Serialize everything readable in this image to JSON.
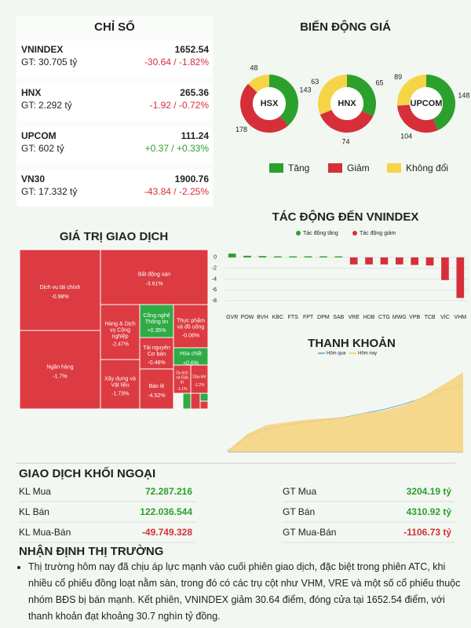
{
  "indices": {
    "title": "CHỈ SỐ",
    "rows": [
      {
        "name": "VNINDEX",
        "value": "1652.54",
        "turnover": "GT: 30.705 tỷ",
        "change": "-30.64 / -1.82%"
      },
      {
        "name": "HNX",
        "value": "265.36",
        "turnover": "GT: 2.292 tỷ",
        "change": "-1.92 / -0.72%"
      },
      {
        "name": "UPCOM",
        "value": "111.24",
        "turnover": "GT: 602 tỷ",
        "change": "+0.37 / +0.33%"
      },
      {
        "name": "VN30",
        "value": "1900.76",
        "turnover": "GT: 17.332 tỷ",
        "change": "-43.84 / -2.25%"
      }
    ]
  },
  "breadth": {
    "title": "BIẾN ĐỘNG GIÁ",
    "legend": [
      "Tăng",
      "Giảm",
      "Không đổi"
    ],
    "colors": [
      "#2ca02c",
      "#d62f3a",
      "#f5d547"
    ],
    "exchanges": [
      {
        "name": "HSX",
        "values": [
          143,
          178,
          48
        ]
      },
      {
        "name": "HNX",
        "values": [
          65,
          74,
          63
        ]
      },
      {
        "name": "UPCOM",
        "values": [
          148,
          104,
          89
        ]
      }
    ]
  },
  "impact": {
    "type": "bar",
    "title": "TÁC ĐỘNG ĐẾN VNINDEX",
    "legend": [
      "Tác động tăng",
      "Tác động giảm"
    ],
    "colors": [
      "#2ca02c",
      "#d62f3a"
    ],
    "categories": [
      "GVR",
      "POW",
      "BVH",
      "KBC",
      "FTS",
      "FPT",
      "DPM",
      "SAB",
      "VRE",
      "HDB",
      "CTG",
      "MWG",
      "VPB",
      "TCB",
      "VIC",
      "VHM"
    ],
    "values": [
      0.7,
      0.3,
      0.25,
      0.2,
      0.2,
      0.2,
      0.2,
      0.2,
      -1.3,
      -1.3,
      -1.3,
      -1.3,
      -1.4,
      -1.5,
      -4.2,
      -7.5
    ],
    "ylim": [
      -8,
      1
    ],
    "yticks": [
      0,
      -2,
      -4,
      -6,
      -8
    ]
  },
  "treemap": {
    "title": "GIÁ TRỊ GIAO DỊCH",
    "cells": [
      {
        "label": "Dịch vụ tài chính",
        "change": "-0.98%"
      },
      {
        "label": "Ngân hàng",
        "change": "-1.7%"
      },
      {
        "label": "Bất động sản",
        "change": "-3.61%"
      },
      {
        "label": "Hàng & Dịch vụ Công nghiệp",
        "change": "-2.47%"
      },
      {
        "label": "Xây dựng và Vật liệu",
        "change": "-1.73%"
      },
      {
        "label": "Công nghệ Thông tin",
        "change": "+0.35%"
      },
      {
        "label": "Thực phẩm và đồ uống",
        "change": "-0.06%"
      },
      {
        "label": "Tài nguyên Cơ bản",
        "change": "-0.46%"
      },
      {
        "label": "Hóa chất",
        "change": "+0.6%"
      },
      {
        "label": "Bán lẻ",
        "change": "-4.52%"
      },
      {
        "label": "Du lịch và Giải trí",
        "change": "-1.1%"
      },
      {
        "label": "Dầu khí",
        "change": "-1.2%"
      }
    ]
  },
  "liquidity": {
    "type": "area",
    "title": "THANH KHOẢN",
    "ylim": [
      0,
      35000
    ],
    "series": [
      {
        "name": "Hôm qua",
        "color": "#7fb3d5",
        "values": [
          500,
          6000,
          9000,
          10500,
          11500,
          12500,
          13500,
          15000,
          16500,
          18500,
          21000,
          24000,
          26000
        ]
      },
      {
        "name": "Hôm nay",
        "color": "#f6d27a",
        "values": [
          500,
          7000,
          10500,
          11500,
          12500,
          13000,
          13500,
          15000,
          16000,
          18000,
          21500,
          26000,
          30705
        ]
      }
    ]
  },
  "foreign": {
    "title": "GIAO DỊCH KHỐI NGOẠI",
    "rows": [
      [
        "KL Mua",
        "72.287.216",
        "GT Mua",
        "3204.19 tỷ"
      ],
      [
        "KL Bán",
        "122.036.544",
        "GT Bán",
        "4310.92 tỷ"
      ],
      [
        "KL Mua-Bán",
        "-49.749.328",
        "GT Mua-Bán",
        "-1106.73 tỷ"
      ]
    ]
  },
  "commentary": {
    "title": "NHẬN ĐỊNH THỊ TRƯỜNG",
    "bullets": [
      "Thị trường hôm nay đã chịu áp lực mạnh vào cuối phiên giao dịch, đặc biệt trong phiên ATC, khi nhiều cổ phiếu đồng loạt nằm sàn, trong đó có các trụ cột như VHM, VRE và một số cổ phiếu thuộc nhóm BĐS bị bán mạnh. Kết phiên, VNINDEX giảm 30.64 điểm, đóng cửa tại 1652.54 điểm, với thanh khoản đạt khoảng 30.7 nghìn tỷ đồng."
    ]
  }
}
